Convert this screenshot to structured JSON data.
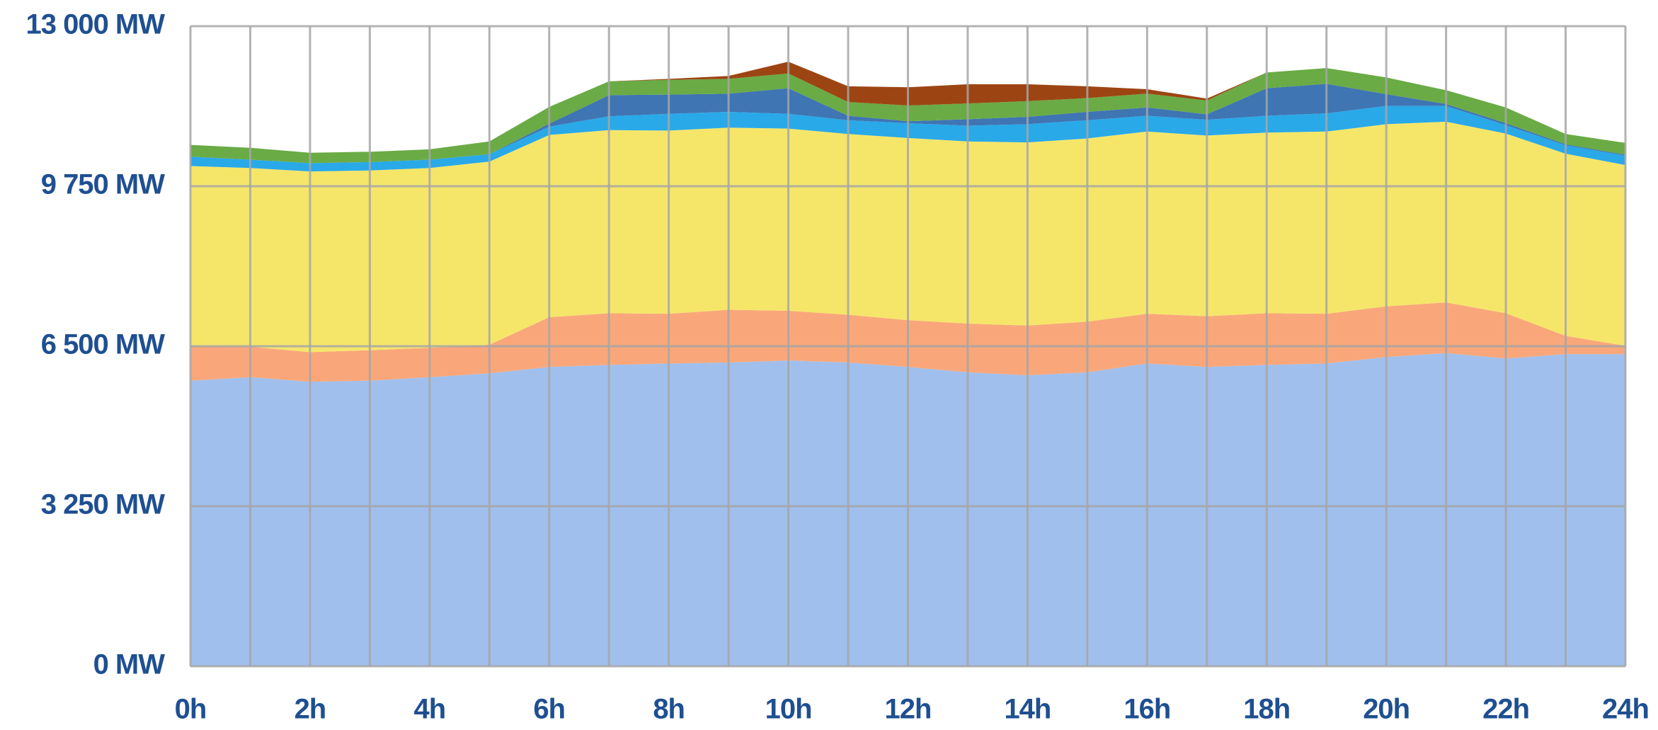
{
  "chart_data": {
    "type": "stacked-area",
    "x": [
      0,
      1,
      2,
      3,
      4,
      5,
      6,
      7,
      8,
      9,
      10,
      11,
      12,
      13,
      14,
      15,
      16,
      17,
      18,
      19,
      20,
      21,
      22,
      23,
      24
    ],
    "series": [
      {
        "color": "#a0bfec",
        "values": [
          5800,
          5870,
          5780,
          5800,
          5870,
          5950,
          6080,
          6120,
          6150,
          6170,
          6210,
          6170,
          6080,
          5970,
          5910,
          5970,
          6150,
          6080,
          6120,
          6150,
          6280,
          6360,
          6250,
          6340,
          6340
        ]
      },
      {
        "color": "#f9a77a",
        "values": [
          710,
          620,
          600,
          620,
          600,
          580,
          1010,
          1050,
          1010,
          1070,
          1010,
          970,
          950,
          990,
          1010,
          1030,
          1010,
          1030,
          1050,
          1010,
          1030,
          1030,
          920,
          370,
          170
        ]
      },
      {
        "color": "#f5e66a",
        "values": [
          3650,
          3630,
          3670,
          3650,
          3650,
          3720,
          3700,
          3720,
          3720,
          3700,
          3700,
          3670,
          3700,
          3700,
          3720,
          3720,
          3700,
          3670,
          3670,
          3700,
          3700,
          3670,
          3650,
          3700,
          3670
        ]
      },
      {
        "color": "#29a9e8",
        "values": [
          190,
          170,
          170,
          170,
          170,
          150,
          170,
          280,
          340,
          320,
          300,
          280,
          300,
          320,
          370,
          370,
          320,
          320,
          340,
          370,
          370,
          320,
          170,
          170,
          190
        ]
      },
      {
        "color": "#3f75b3",
        "values": [
          0,
          0,
          0,
          0,
          0,
          0,
          60,
          430,
          390,
          370,
          520,
          90,
          40,
          130,
          150,
          170,
          170,
          110,
          560,
          600,
          240,
          40,
          40,
          20,
          20
        ]
      },
      {
        "color": "#6aab45",
        "values": [
          240,
          240,
          210,
          210,
          210,
          260,
          340,
          280,
          300,
          300,
          300,
          280,
          320,
          320,
          320,
          280,
          280,
          280,
          320,
          320,
          340,
          280,
          320,
          210,
          240
        ]
      },
      {
        "color": "#9c4513",
        "values": [
          0,
          0,
          0,
          0,
          0,
          0,
          0,
          0,
          20,
          60,
          240,
          320,
          370,
          390,
          340,
          240,
          90,
          40,
          0,
          0,
          0,
          0,
          0,
          0,
          0
        ]
      }
    ],
    "xlim": [
      0,
      24
    ],
    "xticks": [
      {
        "value": 0,
        "label": "0h"
      },
      {
        "value": 2,
        "label": "2h"
      },
      {
        "value": 4,
        "label": "4h"
      },
      {
        "value": 6,
        "label": "6h"
      },
      {
        "value": 8,
        "label": "8h"
      },
      {
        "value": 10,
        "label": "10h"
      },
      {
        "value": 12,
        "label": "12h"
      },
      {
        "value": 14,
        "label": "14h"
      },
      {
        "value": 16,
        "label": "16h"
      },
      {
        "value": 18,
        "label": "18h"
      },
      {
        "value": 20,
        "label": "20h"
      },
      {
        "value": 22,
        "label": "22h"
      },
      {
        "value": 24,
        "label": "24h"
      }
    ],
    "xminorticks": [
      1,
      3,
      5,
      7,
      9,
      11,
      13,
      15,
      17,
      19,
      21,
      23
    ],
    "ylim": [
      0,
      13000
    ],
    "yticks": [
      {
        "value": 0,
        "label": "0 MW"
      },
      {
        "value": 3250,
        "label": "3 250 MW"
      },
      {
        "value": 6500,
        "label": "6 500 MW"
      },
      {
        "value": 9750,
        "label": "9 750 MW"
      },
      {
        "value": 13000,
        "label": "13 000 MW"
      }
    ],
    "grid": true
  }
}
